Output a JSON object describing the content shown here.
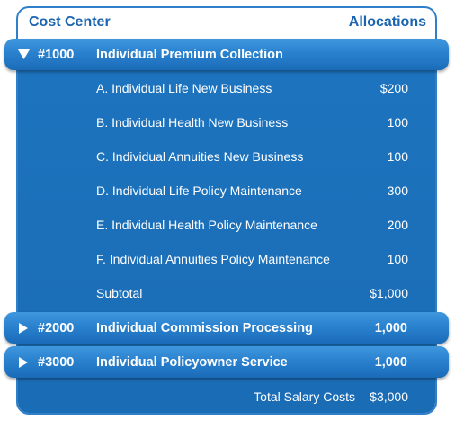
{
  "header": {
    "left_label": "Cost Center",
    "right_label": "Allocations"
  },
  "groups": [
    {
      "code": "#1000",
      "name": "Individual Premium Collection",
      "amount": "",
      "expanded": true,
      "items": [
        {
          "label": "A. Individual Life New Business",
          "value": "$200"
        },
        {
          "label": "B. Individual Health New Business",
          "value": "100"
        },
        {
          "label": "C. Individual Annuities New Business",
          "value": "100"
        },
        {
          "label": "D. Individual Life Policy Maintenance",
          "value": "300"
        },
        {
          "label": "E. Individual Health Policy Maintenance",
          "value": "200"
        },
        {
          "label": "F. Individual Annuities Policy Maintenance",
          "value": "100"
        }
      ],
      "subtotal_label": "Subtotal",
      "subtotal_value": "$1,000"
    },
    {
      "code": "#2000",
      "name": "Individual Commission Processing",
      "amount": "1,000",
      "expanded": false
    },
    {
      "code": "#3000",
      "name": "Individual Policyowner Service",
      "amount": "1,000",
      "expanded": false
    }
  ],
  "total": {
    "label": "Total Salary Costs",
    "value": "$3,000"
  },
  "icons": {
    "expanded": "triangle-down-icon",
    "collapsed": "triangle-right-icon"
  },
  "colors": {
    "header_text": "#1a64b0",
    "panel_blue": "#1e74bf",
    "bar_blue": "#2a82cf",
    "text": "#ffffff"
  }
}
